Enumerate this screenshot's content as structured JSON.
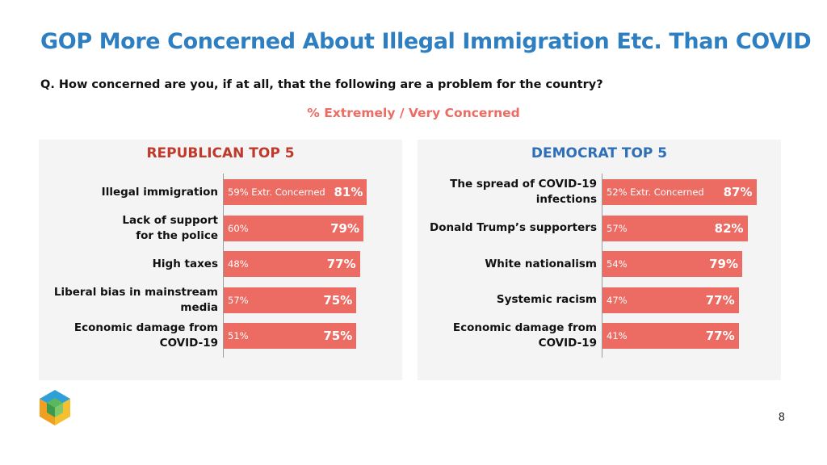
{
  "title": "GOP More Concerned About Illegal Immigration Etc. Than COVID",
  "question": "Q. How concerned are you, if at all, that the following are a problem for the country?",
  "subtitle": "% Extremely / Very Concerned",
  "page_number": "8",
  "colors": {
    "title": "#2e7fc1",
    "bar": "#ec6b62",
    "republican": "#c0392b",
    "democrat": "#2e6fb8",
    "panel": "#f4f4f4"
  },
  "chart_data": [
    {
      "type": "bar",
      "orientation": "horizontal",
      "title": "REPUBLICAN TOP 5",
      "categories": [
        "Illegal immigration",
        "Lack of support for the police",
        "High taxes",
        "Liberal bias in mainstream media",
        "Economic damage from COVID-19"
      ],
      "category_lines": [
        [
          "Illegal immigration"
        ],
        [
          "Lack of support",
          "for the police"
        ],
        [
          "High taxes"
        ],
        [
          "Liberal bias in mainstream",
          "media"
        ],
        [
          "Economic damage from",
          "COVID-19"
        ]
      ],
      "values": [
        81,
        79,
        77,
        75,
        75
      ],
      "value_labels": [
        "81%",
        "79%",
        "77%",
        "75%",
        "75%"
      ],
      "extremely_concerned": [
        59,
        60,
        48,
        57,
        51
      ],
      "extremely_labels": [
        "59% Extr. Concerned",
        "60%",
        "48%",
        "57%",
        "51%"
      ],
      "ylim": [
        0,
        100
      ]
    },
    {
      "type": "bar",
      "orientation": "horizontal",
      "title": "DEMOCRAT TOP 5",
      "categories": [
        "The spread of COVID-19 infections",
        "Donald Trump’s supporters",
        "White nationalism",
        "Systemic racism",
        "Economic damage from COVID-19"
      ],
      "category_lines": [
        [
          "The spread of COVID-19",
          "infections"
        ],
        [
          "Donald Trump’s supporters"
        ],
        [
          "White nationalism"
        ],
        [
          "Systemic racism"
        ],
        [
          "Economic damage from",
          "COVID-19"
        ]
      ],
      "values": [
        87,
        82,
        79,
        77,
        77
      ],
      "value_labels": [
        "87%",
        "82%",
        "79%",
        "77%",
        "77%"
      ],
      "extremely_concerned": [
        52,
        57,
        54,
        47,
        41
      ],
      "extremely_labels": [
        "52% Extr. Concerned",
        "57%",
        "54%",
        "47%",
        "41%"
      ],
      "ylim": [
        0,
        100
      ]
    }
  ]
}
